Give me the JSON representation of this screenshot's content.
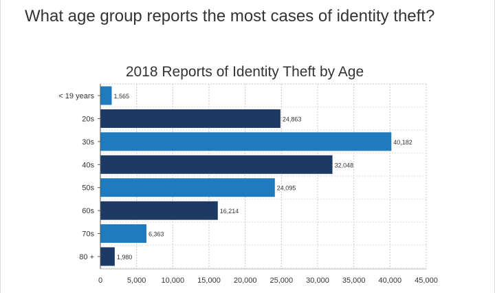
{
  "question": "What age group reports the most cases of identity theft?",
  "chart_data": {
    "type": "bar",
    "orientation": "horizontal",
    "title": "2018 Reports of Identity Theft by Age",
    "categories": [
      "< 19 years",
      "20s",
      "30s",
      "40s",
      "50s",
      "60s",
      "70s",
      "80 +"
    ],
    "values": [
      1565,
      24863,
      40182,
      32048,
      24095,
      16214,
      6363,
      1980
    ],
    "value_labels": [
      "1,565",
      "24,863",
      "40,182",
      "32,048",
      "24,095",
      "16,214",
      "6,363",
      "1,980"
    ],
    "xlim": [
      0,
      45000
    ],
    "xticks": [
      0,
      5000,
      10000,
      15000,
      20000,
      25000,
      30000,
      35000,
      40000,
      45000
    ],
    "xtick_labels": [
      "0",
      "5,000",
      "10,000",
      "15,000",
      "20,000",
      "25,000",
      "30,000",
      "35,000",
      "40,000",
      "45,000"
    ],
    "xlabel": "",
    "ylabel": "",
    "grid": true,
    "colors": [
      "#1f7bbd",
      "#1c3a63"
    ]
  }
}
